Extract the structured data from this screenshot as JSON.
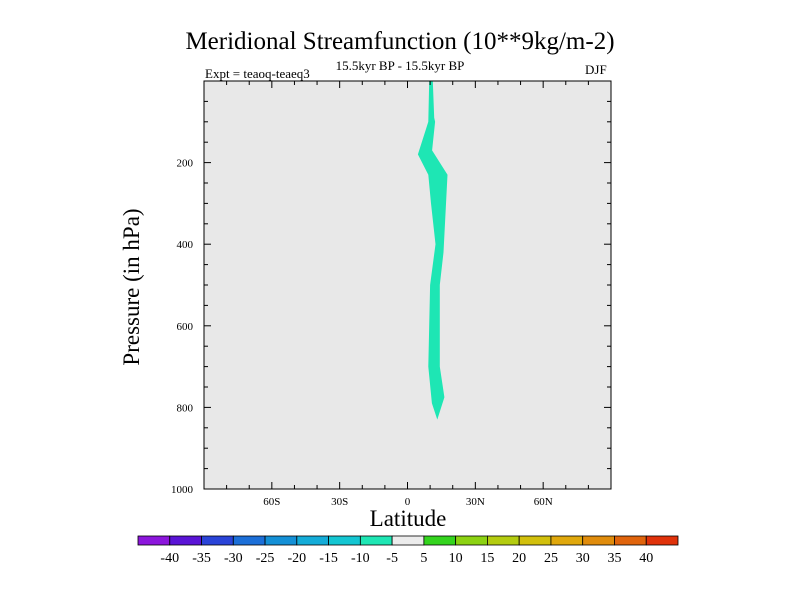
{
  "chart_data": {
    "type": "heatmap",
    "title": "Meridional Streamfunction (10**9kg/m-2)",
    "subtitle": "15.5kyr BP - 15.5kyr BP",
    "expt_label": "Expt = teaoq-teaeq3",
    "season": "DJF",
    "xlabel": "Latitude",
    "ylabel": "Pressure (in hPa)",
    "xlim": [
      -90,
      90
    ],
    "ylim": [
      1000,
      0
    ],
    "x_ticks": [
      {
        "value": -60,
        "label": "60S"
      },
      {
        "value": -30,
        "label": "30S"
      },
      {
        "value": 0,
        "label": "0"
      },
      {
        "value": 30,
        "label": "30N"
      },
      {
        "value": 60,
        "label": "60N"
      }
    ],
    "y_ticks": [
      {
        "value": 200,
        "label": "200"
      },
      {
        "value": 400,
        "label": "400"
      },
      {
        "value": 600,
        "label": "600"
      },
      {
        "value": 800,
        "label": "800"
      },
      {
        "value": 1000,
        "label": "1000"
      }
    ],
    "background_color": "#e8e8e8",
    "contour_region": {
      "level_range": [
        -10,
        -5
      ],
      "color": "#1ee6b4",
      "left_edge": [
        [
          9.6,
          0
        ],
        [
          9.2,
          100
        ],
        [
          4.6,
          180
        ],
        [
          9.2,
          230
        ],
        [
          10.4,
          300
        ],
        [
          12.4,
          400
        ],
        [
          10.0,
          500
        ],
        [
          9.6,
          600
        ],
        [
          9.2,
          700
        ],
        [
          10.8,
          790
        ],
        [
          13.2,
          830
        ]
      ],
      "right_edge": [
        [
          11.2,
          0
        ],
        [
          11.8,
          90
        ],
        [
          12.2,
          100
        ],
        [
          10.9,
          170
        ],
        [
          17.7,
          230
        ],
        [
          15.9,
          420
        ],
        [
          14.3,
          500
        ],
        [
          14.3,
          600
        ],
        [
          14.3,
          700
        ],
        [
          16.3,
          775
        ],
        [
          13.2,
          830
        ]
      ]
    },
    "colorbar": {
      "levels": [
        -40,
        -35,
        -30,
        -25,
        -20,
        -15,
        -10,
        -5,
        5,
        10,
        15,
        20,
        25,
        30,
        35,
        40
      ],
      "colors": [
        "#8c16dc",
        "#5a14d6",
        "#2a44d8",
        "#1c6fd8",
        "#1490d6",
        "#14acd8",
        "#14c6d2",
        "#1ee6b4",
        "#ececec",
        "#34d41e",
        "#8cd212",
        "#b4cc10",
        "#d2c00c",
        "#e0a80c",
        "#e08c0c",
        "#e0640c",
        "#e0320a"
      ]
    }
  }
}
